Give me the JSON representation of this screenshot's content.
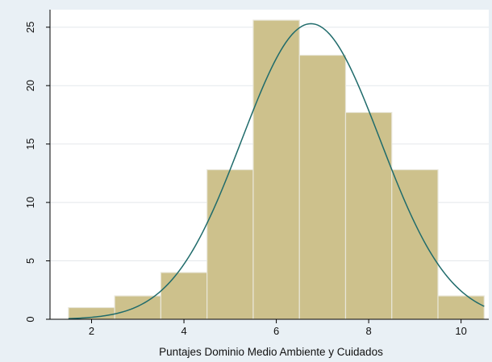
{
  "chart_data": {
    "type": "bar",
    "subtype": "histogram-with-normal-curve",
    "title": "",
    "xlabel": "Puntajes Dominio Medio Ambiente y Cuidados",
    "ylabel": "",
    "xlim": [
      1.1,
      10.6
    ],
    "ylim": [
      0,
      26.5
    ],
    "x_ticks": [
      2,
      4,
      6,
      8,
      10
    ],
    "y_ticks": [
      0,
      5,
      10,
      15,
      20,
      25
    ],
    "grid": "horizontal",
    "legend": "none",
    "bins": [
      {
        "x0": 1.5,
        "x1": 2.5,
        "value": 1.0
      },
      {
        "x0": 2.5,
        "x1": 3.5,
        "value": 2.0
      },
      {
        "x0": 3.5,
        "x1": 4.5,
        "value": 4.0
      },
      {
        "x0": 4.5,
        "x1": 5.5,
        "value": 12.8
      },
      {
        "x0": 5.5,
        "x1": 6.5,
        "value": 25.6
      },
      {
        "x0": 6.5,
        "x1": 7.5,
        "value": 22.6
      },
      {
        "x0": 7.5,
        "x1": 8.5,
        "value": 17.7
      },
      {
        "x0": 8.5,
        "x1": 9.5,
        "value": 12.8
      },
      {
        "x0": 9.5,
        "x1": 10.5,
        "value": 2.0
      }
    ],
    "normal_curve": {
      "mean": 6.75,
      "sd": 1.5,
      "peak": 25.3,
      "x_range": [
        1.5,
        10.5
      ]
    },
    "colors": {
      "bar_fill": "#cdc18c",
      "bar_edge": "#e8e6d8",
      "curve": "#1f6b6b",
      "plot_bg": "#ffffff",
      "page_bg": "#e9f0f5",
      "grid": "#e4e8eb",
      "axis": "#000000"
    }
  }
}
